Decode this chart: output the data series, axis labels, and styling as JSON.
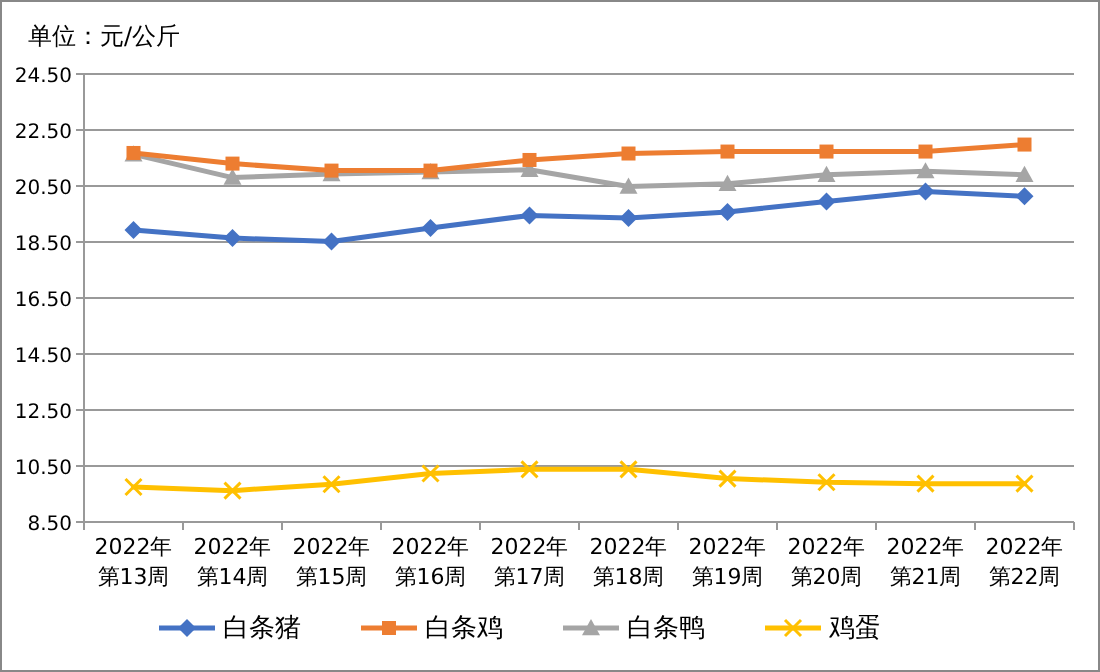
{
  "chart_data": {
    "type": "line",
    "ylabel": "单位：元/公斤",
    "categories": [
      "2022年第13周",
      "2022年第14周",
      "2022年第15周",
      "2022年第16周",
      "2022年第17周",
      "2022年第18周",
      "2022年第19周",
      "2022年第20周",
      "2022年第21周",
      "2022年第22周"
    ],
    "series": [
      {
        "name": "白条猪",
        "color": "#4472c4",
        "marker": "diamond",
        "values": [
          18.93,
          18.64,
          18.52,
          19.0,
          19.45,
          19.36,
          19.57,
          19.95,
          20.3,
          20.13
        ]
      },
      {
        "name": "白条鸡",
        "color": "#ed7d31",
        "marker": "square",
        "values": [
          21.68,
          21.3,
          21.05,
          21.05,
          21.43,
          21.66,
          21.73,
          21.73,
          21.73,
          21.98
        ]
      },
      {
        "name": "白条鸭",
        "color": "#a5a5a5",
        "marker": "triangle",
        "values": [
          21.63,
          20.8,
          20.93,
          21.0,
          21.08,
          20.48,
          20.58,
          20.9,
          21.03,
          20.9
        ]
      },
      {
        "name": "鸡蛋",
        "color": "#ffc000",
        "marker": "cross",
        "values": [
          9.75,
          9.62,
          9.85,
          10.23,
          10.38,
          10.38,
          10.05,
          9.92,
          9.87,
          9.87
        ]
      }
    ],
    "ylim": [
      8.5,
      24.5
    ],
    "yticks": [
      {
        "value": 8.5,
        "label": "8.50"
      },
      {
        "value": 10.5,
        "label": "10.50"
      },
      {
        "value": 12.5,
        "label": "12.50"
      },
      {
        "value": 14.5,
        "label": "14.50"
      },
      {
        "value": 16.5,
        "label": "16.50"
      },
      {
        "value": 18.5,
        "label": "18.50"
      },
      {
        "value": 20.5,
        "label": "20.50"
      },
      {
        "value": 22.5,
        "label": "22.50"
      },
      {
        "value": 24.5,
        "label": "24.50"
      }
    ],
    "grid": "y",
    "legend": "bottom"
  }
}
